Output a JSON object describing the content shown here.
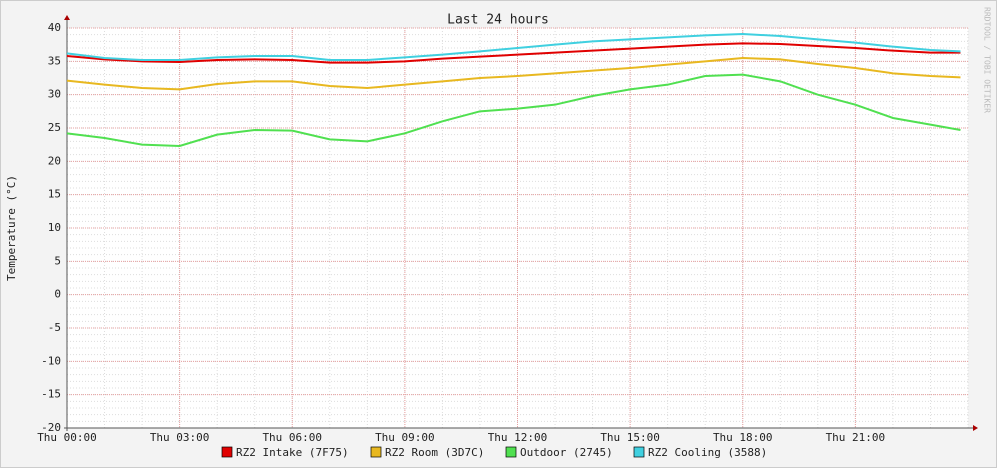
{
  "chart_data": {
    "type": "line",
    "title": "Last 24 hours",
    "ylabel": "Temperature (°C)",
    "watermark": "RRDTOOL / TOBI OETIKER",
    "x": [
      0,
      1,
      2,
      3,
      4,
      5,
      6,
      7,
      8,
      9,
      10,
      11,
      12,
      13,
      14,
      15,
      16,
      17,
      18,
      19,
      20,
      21,
      22,
      23,
      23.8
    ],
    "xlim": [
      0,
      24
    ],
    "xticks": [
      {
        "value": 0,
        "label": "Thu 00:00"
      },
      {
        "value": 3,
        "label": "Thu 03:00"
      },
      {
        "value": 6,
        "label": "Thu 06:00"
      },
      {
        "value": 9,
        "label": "Thu 09:00"
      },
      {
        "value": 12,
        "label": "Thu 12:00"
      },
      {
        "value": 15,
        "label": "Thu 15:00"
      },
      {
        "value": 18,
        "label": "Thu 18:00"
      },
      {
        "value": 21,
        "label": "Thu 21:00"
      }
    ],
    "ylim": [
      -20,
      40
    ],
    "yticks": [
      -20,
      -15,
      -10,
      -5,
      0,
      5,
      10,
      15,
      20,
      25,
      30,
      35,
      40
    ],
    "grid": true,
    "series": [
      {
        "name": "RZ2 Intake (7F75)",
        "color": "#e00000",
        "values": [
          35.8,
          35.3,
          35.0,
          34.9,
          35.2,
          35.3,
          35.2,
          34.8,
          34.8,
          35.0,
          35.4,
          35.7,
          36.0,
          36.3,
          36.6,
          36.9,
          37.2,
          37.5,
          37.7,
          37.6,
          37.3,
          37.0,
          36.6,
          36.3,
          36.3
        ]
      },
      {
        "name": "RZ2 Room (3D7C)",
        "color": "#e8b820",
        "values": [
          32.1,
          31.5,
          31.0,
          30.8,
          31.6,
          32.0,
          32.0,
          31.3,
          31.0,
          31.5,
          32.0,
          32.5,
          32.8,
          33.2,
          33.6,
          34.0,
          34.5,
          35.0,
          35.5,
          35.3,
          34.6,
          34.0,
          33.2,
          32.8,
          32.6
        ]
      },
      {
        "name": "Outdoor (2745)",
        "color": "#50e050",
        "values": [
          24.2,
          23.5,
          22.5,
          22.3,
          24.0,
          24.7,
          24.6,
          23.3,
          23.0,
          24.2,
          26.0,
          27.5,
          27.9,
          28.5,
          29.8,
          30.8,
          31.5,
          32.8,
          33.0,
          32.0,
          30.0,
          28.5,
          26.5,
          25.5,
          24.7
        ]
      },
      {
        "name": "RZ2 Cooling (3588)",
        "color": "#40d0e0",
        "values": [
          36.2,
          35.5,
          35.2,
          35.2,
          35.6,
          35.8,
          35.8,
          35.2,
          35.2,
          35.6,
          36.0,
          36.5,
          37.0,
          37.5,
          38.0,
          38.3,
          38.6,
          38.9,
          39.1,
          38.8,
          38.3,
          37.8,
          37.2,
          36.7,
          36.5
        ]
      }
    ]
  }
}
